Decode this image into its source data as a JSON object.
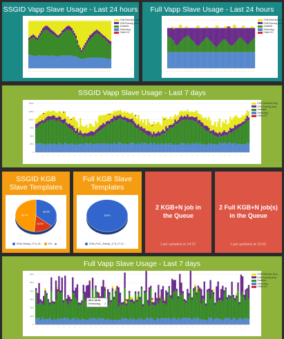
{
  "colors": {
    "esx_retention_busy": "#e8e81e",
    "esx_running_busy": "#6a2c8a",
    "available": "#3a8a2a",
    "refreshing": "#5588cc",
    "failed_hc": "#dd2222"
  },
  "legend_items": [
    {
      "label": "ESM Retention Busy",
      "color": "#e8e81e"
    },
    {
      "label": "ESM Running Busy",
      "color": "#6a2c8a"
    },
    {
      "label": "Available",
      "color": "#3a8a2a"
    },
    {
      "label": "Refreshing",
      "color": "#5588cc"
    },
    {
      "label": "Failed HC",
      "color": "#dd2222"
    }
  ],
  "tiles": {
    "ssgid_24h": {
      "title": "SSGID Vapp Slave Usage - Last 24 hours"
    },
    "full_24h": {
      "title": "Full Vapp Slave Usage - Last 24 hours"
    },
    "ssgid_7d": {
      "title": "SSGID Vapp Slave Usage - Last 7 days"
    },
    "ssgid_kgb": {
      "title": "SSGID KGB Slave Templates",
      "legend": [
        "ESM_Ready_17.5_13...",
        "ES..."
      ]
    },
    "full_kgb": {
      "title": "Full KGB Slave Templates",
      "legend": [
        "ESM_FULL_Ready_17.5_17.12..."
      ]
    },
    "kgb_queue": {
      "text": "2 KGB+N job in the Queue",
      "updated": "Last updated at 14:37"
    },
    "full_kgb_queue": {
      "text": "2 Full KGB+N job(s) in the Queue",
      "updated": "Last updated at 14:55"
    },
    "full_7d": {
      "title": "Full Vapp Slave Usage - Last 7 days"
    }
  },
  "tooltip": {
    "title": "03-2 13:44",
    "label": "Refreshing",
    "value": "2"
  },
  "chart_data": [
    {
      "type": "bar",
      "title": "SSGID Vapp Slave Usage - Last 24 hours",
      "stacked": true,
      "bins": 60,
      "ylim": [
        0,
        100
      ],
      "series": [
        {
          "name": "ESM Retention Busy",
          "values": [
            35,
            32,
            30,
            28,
            30,
            33,
            35,
            30,
            25,
            20,
            15,
            12,
            10,
            10,
            12,
            15,
            18,
            20,
            22,
            25,
            28,
            30,
            28,
            25,
            20,
            18,
            15,
            12,
            10,
            10,
            12,
            15,
            20,
            25,
            30,
            40,
            50,
            55,
            60,
            55,
            50,
            45,
            40,
            35,
            30,
            28,
            25,
            22,
            20,
            18,
            20,
            22,
            25,
            28,
            30,
            32,
            35,
            38,
            40,
            42
          ]
        },
        {
          "name": "ESM Running Busy",
          "values": [
            5,
            5,
            6,
            6,
            5,
            5,
            5,
            6,
            6,
            7,
            7,
            8,
            8,
            8,
            8,
            8,
            7,
            7,
            6,
            6,
            5,
            5,
            5,
            5,
            6,
            6,
            7,
            7,
            8,
            8,
            8,
            7,
            7,
            6,
            6,
            5,
            5,
            5,
            5,
            5,
            6,
            6,
            7,
            7,
            8,
            8,
            8,
            8,
            7,
            7,
            6,
            6,
            5,
            5,
            5,
            5,
            6,
            6,
            7,
            7
          ]
        },
        {
          "name": "Available",
          "values": [
            30,
            33,
            35,
            38,
            38,
            35,
            32,
            35,
            40,
            45,
            50,
            52,
            54,
            54,
            52,
            50,
            47,
            45,
            44,
            42,
            40,
            38,
            40,
            42,
            45,
            48,
            50,
            52,
            54,
            54,
            52,
            50,
            46,
            42,
            38,
            30,
            22,
            18,
            14,
            18,
            22,
            26,
            30,
            35,
            38,
            40,
            43,
            46,
            49,
            51,
            50,
            48,
            46,
            44,
            42,
            40,
            37,
            34,
            31,
            29
          ]
        },
        {
          "name": "Refreshing",
          "values": [
            28,
            28,
            27,
            26,
            25,
            25,
            26,
            27,
            27,
            26,
            26,
            26,
            26,
            26,
            26,
            25,
            26,
            26,
            26,
            25,
            25,
            25,
            25,
            26,
            27,
            26,
            26,
            27,
            26,
            26,
            26,
            26,
            25,
            25,
            24,
            23,
            21,
            20,
            19,
            20,
            20,
            21,
            21,
            21,
            22,
            22,
            22,
            22,
            22,
            22,
            22,
            22,
            22,
            21,
            21,
            21,
            20,
            20,
            20,
            20
          ]
        },
        {
          "name": "Failed HC",
          "values": [
            0,
            0,
            0,
            0,
            0,
            0,
            0,
            0,
            0,
            0,
            0,
            0,
            0,
            0,
            0,
            0,
            0,
            0,
            0,
            0,
            0,
            0,
            0,
            0,
            0,
            0,
            0,
            0,
            0,
            0,
            0,
            0,
            0,
            0,
            0,
            0,
            0,
            0,
            0,
            0,
            0,
            0,
            0,
            0,
            0,
            0,
            0,
            0,
            0,
            0,
            0,
            0,
            0,
            0,
            0,
            0,
            0,
            0,
            0,
            0
          ]
        }
      ]
    },
    {
      "type": "bar",
      "title": "Full Vapp Slave Usage - Last 24 hours",
      "stacked": true,
      "bins": 60,
      "ylim": [
        0,
        60
      ],
      "series": [
        {
          "name": "ESM Retention Busy",
          "values": [
            0,
            0,
            0,
            2,
            2,
            0,
            0,
            0,
            4,
            4,
            0,
            0,
            2,
            2,
            0,
            0,
            0,
            0,
            0,
            0,
            3,
            3,
            0,
            0,
            0,
            0,
            2,
            2,
            0,
            0,
            0,
            0,
            0,
            3,
            3,
            0,
            0,
            0,
            0,
            2,
            2,
            0,
            0,
            0,
            0,
            4,
            4,
            0,
            0,
            0,
            0,
            3,
            3,
            0,
            0,
            0,
            0,
            2,
            2,
            0
          ]
        },
        {
          "name": "ESM Running Busy",
          "values": [
            10,
            12,
            12,
            14,
            15,
            20,
            22,
            20,
            18,
            16,
            14,
            12,
            12,
            10,
            10,
            12,
            14,
            16,
            18,
            20,
            22,
            22,
            20,
            18,
            16,
            14,
            12,
            12,
            14,
            16,
            18,
            20,
            22,
            24,
            22,
            20,
            18,
            16,
            14,
            14,
            16,
            18,
            20,
            22,
            22,
            20,
            18,
            16,
            14,
            12,
            12,
            14,
            16,
            18,
            20,
            20,
            18,
            16,
            14,
            12
          ]
        },
        {
          "name": "Available",
          "values": [
            20,
            18,
            18,
            16,
            14,
            10,
            8,
            10,
            12,
            14,
            16,
            18,
            18,
            20,
            20,
            18,
            16,
            14,
            12,
            10,
            8,
            8,
            10,
            12,
            14,
            16,
            18,
            18,
            16,
            14,
            12,
            10,
            8,
            6,
            8,
            10,
            12,
            14,
            16,
            16,
            14,
            12,
            10,
            8,
            8,
            10,
            12,
            14,
            16,
            18,
            18,
            16,
            14,
            12,
            10,
            10,
            12,
            14,
            16,
            18
          ]
        },
        {
          "name": "Refreshing",
          "values": [
            20,
            20,
            20,
            20,
            20,
            20,
            20,
            20,
            20,
            20,
            20,
            20,
            20,
            20,
            20,
            20,
            20,
            20,
            20,
            20,
            20,
            20,
            20,
            20,
            20,
            20,
            20,
            20,
            20,
            20,
            20,
            20,
            20,
            20,
            20,
            20,
            20,
            20,
            20,
            20,
            20,
            20,
            20,
            20,
            20,
            20,
            20,
            20,
            20,
            20,
            20,
            20,
            20,
            20,
            20,
            20,
            20,
            20,
            20,
            20
          ]
        },
        {
          "name": "Failed HC",
          "values": [
            0,
            0,
            0,
            0,
            0,
            0,
            0,
            0,
            0,
            0,
            0,
            0,
            0,
            0,
            0,
            0,
            0,
            0,
            0,
            0,
            0,
            0,
            0,
            0,
            0,
            0,
            0,
            0,
            0,
            0,
            0,
            0,
            0,
            0,
            0,
            0,
            0,
            0,
            0,
            0,
            0,
            2,
            2,
            0,
            0,
            0,
            0,
            0,
            0,
            0,
            0,
            0,
            0,
            0,
            0,
            0,
            0,
            0,
            0,
            0
          ]
        }
      ]
    },
    {
      "type": "bar",
      "title": "SSGID Vapp Slave Usage - Last 7 days",
      "stacked": true,
      "bins": 140,
      "ylim": [
        0,
        150
      ],
      "yticks": [
        "0",
        "25.0",
        "50.0",
        "75.0",
        "100.0",
        "125.0",
        "150.0"
      ]
    },
    {
      "type": "pie",
      "title": "SSGID KGB Slave Templates",
      "slices": [
        {
          "label": "ESM_Ready_17.5_13...",
          "value": 36.3,
          "color": "#3366cc"
        },
        {
          "label": "",
          "value": 15.0,
          "color": "#dc3912"
        },
        {
          "label": "ES...",
          "value": 48.7,
          "color": "#ff9900"
        }
      ],
      "data_labels": [
        "36.3%",
        "15.0%",
        "48.7%"
      ]
    },
    {
      "type": "pie",
      "title": "Full KGB Slave Templates",
      "slices": [
        {
          "label": "ESM_FULL_Ready_17.5_17.12...",
          "value": 100,
          "color": "#3366cc"
        }
      ],
      "data_labels": [
        "100%"
      ]
    },
    {
      "type": "bar",
      "title": "Full Vapp Slave Usage - Last 7 days",
      "stacked": true,
      "bins": 140,
      "ylim": [
        0,
        60
      ],
      "yticks": [
        "0",
        "10.0",
        "20.0",
        "30.0",
        "40.0",
        "50.0",
        "60.0"
      ]
    }
  ]
}
